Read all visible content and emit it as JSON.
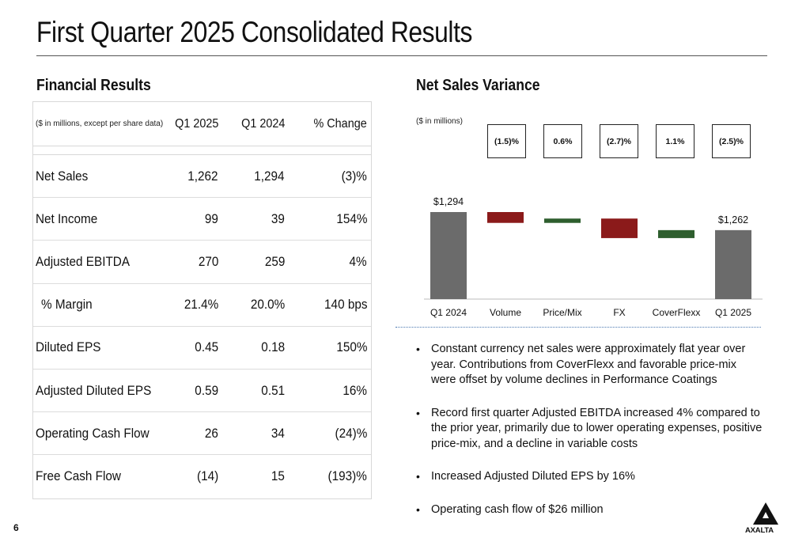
{
  "title": "First Quarter 2025 Consolidated Results",
  "page_number": "6",
  "logo_text": "AXALTA",
  "financial": {
    "heading": "Financial Results",
    "columns": {
      "label": "($ in millions, except per share data)",
      "q1_2025": "Q1 2025",
      "q1_2024": "Q1 2024",
      "change": "% Change"
    },
    "rows": [
      {
        "label": "Net Sales",
        "q1_2025": "1,262",
        "q1_2024": "1,294",
        "change": "(3)%"
      },
      {
        "label": "Net Income",
        "q1_2025": "99",
        "q1_2024": "39",
        "change": "154%"
      },
      {
        "label": "Adjusted EBITDA",
        "q1_2025": "270",
        "q1_2024": "259",
        "change": "4%"
      },
      {
        "label": "% Margin",
        "q1_2025": "21.4%",
        "q1_2024": "20.0%",
        "change": "140 bps"
      },
      {
        "label": "Diluted EPS",
        "q1_2025": "0.45",
        "q1_2024": "0.18",
        "change": "150%"
      },
      {
        "label": "Adjusted Diluted EPS",
        "q1_2025": "0.59",
        "q1_2024": "0.51",
        "change": "16%"
      },
      {
        "label": "Operating Cash Flow",
        "q1_2025": "26",
        "q1_2024": "34",
        "change": "(24)%"
      },
      {
        "label": "Free Cash Flow",
        "q1_2025": "(14)",
        "q1_2024": "15",
        "change": "(193)%"
      }
    ]
  },
  "variance": {
    "heading": "Net Sales Variance",
    "unit_note": "($ in millions)",
    "boxes": [
      "(1.5)%",
      "0.6%",
      "(2.7)%",
      "1.1%",
      "(2.5)%"
    ]
  },
  "chart_data": {
    "type": "bar",
    "subtype": "waterfall",
    "categories": [
      "Q1 2024",
      "Volume",
      "Price/Mix",
      "FX",
      "CoverFlexx",
      "Q1 2025"
    ],
    "totals": {
      "Q1 2024": 1294,
      "Q1 2025": 1262
    },
    "total_labels": [
      "$1,294",
      "$1,262"
    ],
    "steps": [
      {
        "category": "Volume",
        "pct": "(1.5)%",
        "direction": "down"
      },
      {
        "category": "Price/Mix",
        "pct": "0.6%",
        "direction": "up"
      },
      {
        "category": "FX",
        "pct": "(2.7)%",
        "direction": "down"
      },
      {
        "category": "CoverFlexx",
        "pct": "1.1%",
        "direction": "up"
      }
    ],
    "colors": {
      "total": "#6b6b6b",
      "decrease": "#8b1a1a",
      "increase": "#2e5e2e"
    },
    "grid": false,
    "legend": "none"
  },
  "bullets": [
    "Constant currency net sales were approximately flat year over year. Contributions from CoverFlexx and favorable price-mix were offset by volume declines in Performance Coatings",
    "Record first quarter Adjusted EBITDA increased 4% compared to the prior year, primarily due to lower operating expenses, positive price-mix, and a decline in variable costs",
    "Increased Adjusted Diluted EPS by 16%",
    "Operating cash flow of $26 million"
  ]
}
